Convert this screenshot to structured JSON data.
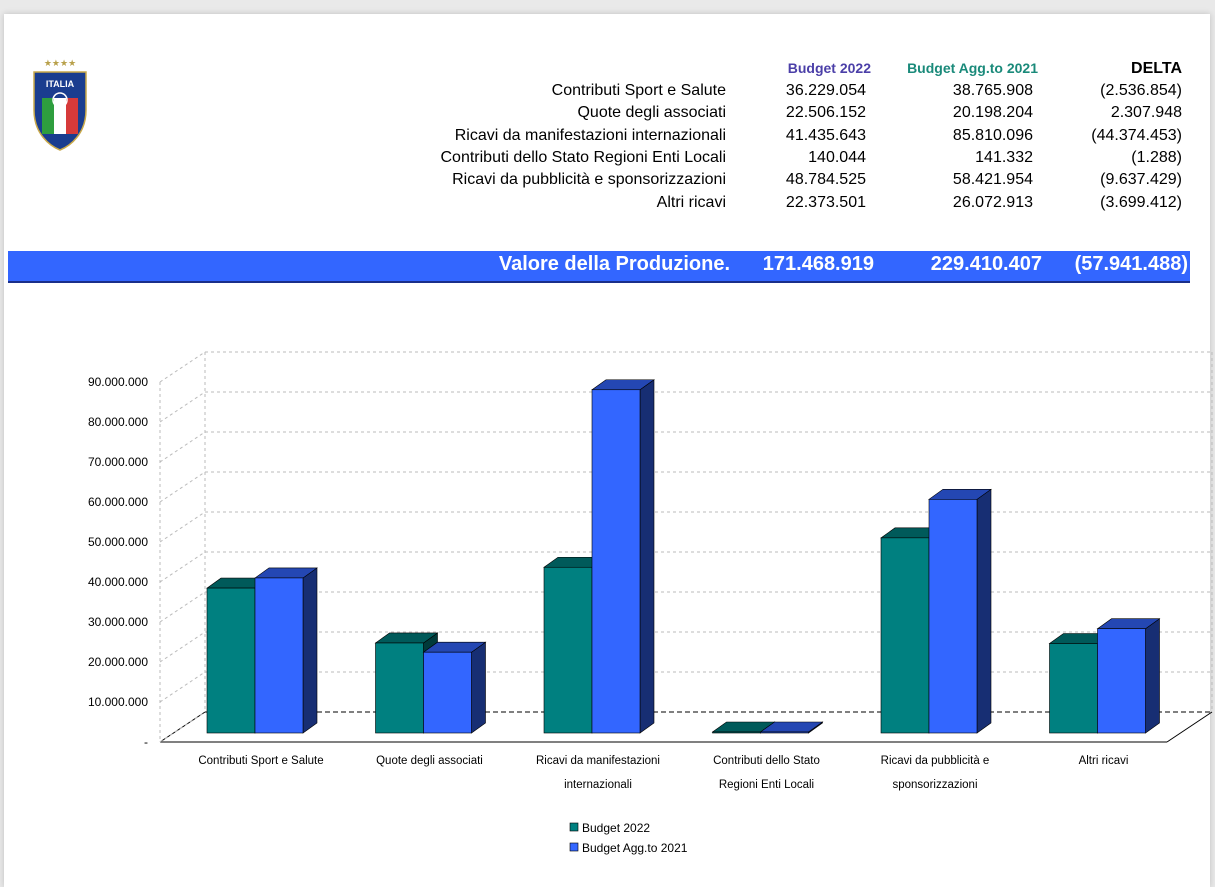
{
  "columns": {
    "budget2022": "Budget 2022",
    "budget2021": "Budget Agg.to 2021",
    "delta": "DELTA"
  },
  "column_colors": {
    "budget2022": "#4b3fa8",
    "budget2021": "#1a8a7a",
    "delta": "#000000"
  },
  "rows": [
    {
      "label": "Contributi Sport e Salute",
      "b2022": "36.229.054",
      "b2021": "38.765.908",
      "delta": "(2.536.854)"
    },
    {
      "label": "Quote degli associati",
      "b2022": "22.506.152",
      "b2021": "20.198.204",
      "delta": "2.307.948"
    },
    {
      "label": "Ricavi da manifestazioni internazionali",
      "b2022": "41.435.643",
      "b2021": "85.810.096",
      "delta": "(44.374.453)"
    },
    {
      "label": "Contributi dello Stato Regioni Enti Locali",
      "b2022": "140.044",
      "b2021": "141.332",
      "delta": "(1.288)"
    },
    {
      "label": "Ricavi da pubblicità e sponsorizzazioni",
      "b2022": "48.784.525",
      "b2021": "58.421.954",
      "delta": "(9.637.429)"
    },
    {
      "label": "Altri ricavi",
      "b2022": "22.373.501",
      "b2021": "26.072.913",
      "delta": "(3.699.412)"
    }
  ],
  "total": {
    "label": "Valore della Produzione.",
    "b2022": "171.468.919",
    "b2021": "229.410.407",
    "delta": "(57.941.488)"
  },
  "logo": {
    "text": "ITALIA",
    "stars": "★★★★"
  },
  "chart_data": {
    "type": "bar",
    "categories": [
      [
        "Contributi Sport e Salute"
      ],
      [
        "Quote degli associati"
      ],
      [
        "Ricavi da manifestazioni",
        "internazionali"
      ],
      [
        "Contributi dello Stato",
        "Regioni Enti Locali"
      ],
      [
        "Ricavi da pubblicità e",
        "sponsorizzazioni"
      ],
      [
        "Altri ricavi"
      ]
    ],
    "series": [
      {
        "name": "Budget 2022",
        "color": "#008080",
        "values": [
          36229054,
          22506152,
          41435643,
          140044,
          48784525,
          22373501
        ]
      },
      {
        "name": "Budget Agg.to 2021",
        "color": "#3366ff",
        "values": [
          38765908,
          20198204,
          85810096,
          141332,
          58421954,
          26072913
        ]
      }
    ],
    "yticks": [
      "-",
      "10.000.000",
      "20.000.000",
      "30.000.000",
      "40.000.000",
      "50.000.000",
      "60.000.000",
      "70.000.000",
      "80.000.000",
      "90.000.000"
    ],
    "ylim": [
      0,
      90000000
    ],
    "grid": true,
    "legend": "bottom"
  }
}
